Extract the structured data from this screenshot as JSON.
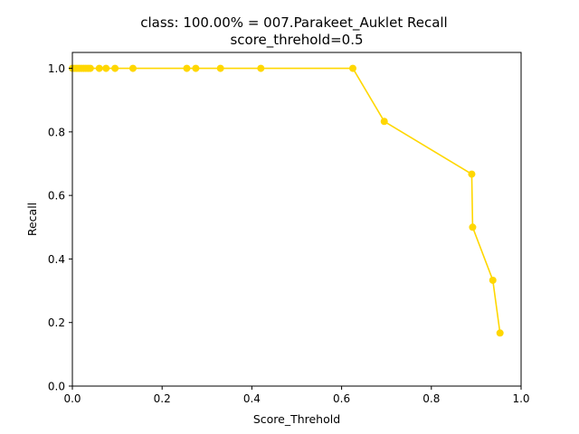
{
  "chart_data": {
    "type": "line",
    "title": "class: 100.00% = 007.Parakeet_Auklet Recall",
    "subtitle": "score_threhold=0.5",
    "xlabel": "Score_Threhold",
    "ylabel": "Recall",
    "xlim": [
      0.0,
      1.0
    ],
    "ylim": [
      0.0,
      1.05
    ],
    "xticks": [
      "0.0",
      "0.2",
      "0.4",
      "0.6",
      "0.8",
      "1.0"
    ],
    "yticks": [
      "0.0",
      "0.2",
      "0.4",
      "0.6",
      "0.8",
      "1.0"
    ],
    "grid": false,
    "legend": "none",
    "series": [
      {
        "color": "#ffd700",
        "marker": "circle",
        "points": [
          {
            "x": 0.0,
            "y": 1.0
          },
          {
            "x": 0.005,
            "y": 1.0
          },
          {
            "x": 0.01,
            "y": 1.0
          },
          {
            "x": 0.015,
            "y": 1.0
          },
          {
            "x": 0.02,
            "y": 1.0
          },
          {
            "x": 0.025,
            "y": 1.0
          },
          {
            "x": 0.03,
            "y": 1.0
          },
          {
            "x": 0.035,
            "y": 1.0
          },
          {
            "x": 0.04,
            "y": 1.0
          },
          {
            "x": 0.06,
            "y": 1.0
          },
          {
            "x": 0.075,
            "y": 1.0
          },
          {
            "x": 0.095,
            "y": 1.0
          },
          {
            "x": 0.135,
            "y": 1.0
          },
          {
            "x": 0.255,
            "y": 1.0
          },
          {
            "x": 0.275,
            "y": 1.0
          },
          {
            "x": 0.33,
            "y": 1.0
          },
          {
            "x": 0.42,
            "y": 1.0
          },
          {
            "x": 0.625,
            "y": 1.0
          },
          {
            "x": 0.695,
            "y": 0.833
          },
          {
            "x": 0.89,
            "y": 0.667
          },
          {
            "x": 0.892,
            "y": 0.5
          },
          {
            "x": 0.937,
            "y": 0.333
          },
          {
            "x": 0.953,
            "y": 0.167
          }
        ]
      }
    ]
  }
}
